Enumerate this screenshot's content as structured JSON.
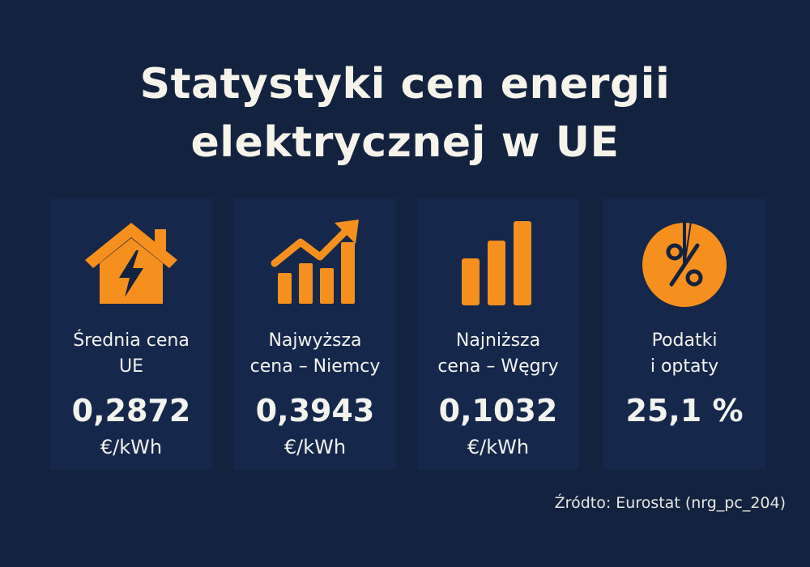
{
  "title": {
    "line1": "Statystyki cen energii",
    "line2": "elektrycznej w UE"
  },
  "accent_color": "#f5901e",
  "cards": [
    {
      "icon": "house-lightning-icon",
      "label_line1": "Średnia cena",
      "label_line2": "UE",
      "value": "0,2872",
      "unit": "€/kWh"
    },
    {
      "icon": "trending-up-bars-icon",
      "label_line1": "Najwyższa",
      "label_line2": "cena – Niemcy",
      "value": "0,3943",
      "unit": "€/kWh"
    },
    {
      "icon": "bar-chart-icon",
      "label_line1": "Najniższa",
      "label_line2": "cena – Węgry",
      "value": "0,1032",
      "unit": "€/kWh"
    },
    {
      "icon": "percent-pie-icon",
      "label_line1": "Podatki",
      "label_line2": "i optaty",
      "value": "25,1 %",
      "unit": ""
    }
  ],
  "source": "Źródto: Eurostat (nrg_pc_204)"
}
